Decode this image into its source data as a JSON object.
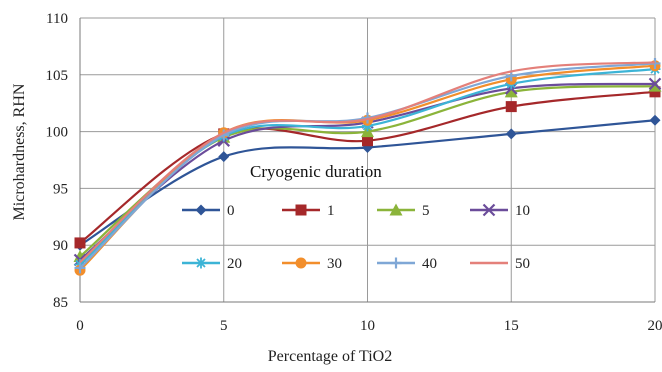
{
  "chart_data": {
    "type": "line",
    "title": "",
    "xlabel": "Percentage of  TiO2",
    "ylabel": "Microhardness, RHN",
    "x": [
      0,
      5,
      10,
      15,
      20
    ],
    "x_ticks": [
      "0",
      "5",
      "10",
      "15",
      "20"
    ],
    "y_ticks": [
      "85",
      "90",
      "95",
      "100",
      "105",
      "110"
    ],
    "xlim": [
      0,
      20
    ],
    "ylim": [
      85,
      110
    ],
    "grid": true,
    "smooth": true,
    "legend_title": "Cryogenic duration",
    "legend_placement": "center",
    "series": [
      {
        "name": "0",
        "color": "#2F5597",
        "marker": "diamond",
        "values": [
          90.0,
          97.8,
          98.6,
          99.8,
          101.0
        ]
      },
      {
        "name": "1",
        "color": "#A5282A",
        "marker": "square",
        "values": [
          90.2,
          99.8,
          99.2,
          102.2,
          103.5
        ]
      },
      {
        "name": "5",
        "color": "#8BB43A",
        "marker": "triangle",
        "values": [
          89.0,
          99.5,
          100.0,
          103.5,
          104.0
        ]
      },
      {
        "name": "10",
        "color": "#6B4C9A",
        "marker": "x",
        "values": [
          88.7,
          99.2,
          100.8,
          103.8,
          104.2
        ]
      },
      {
        "name": "20",
        "color": "#3CB4D6",
        "marker": "star",
        "values": [
          88.3,
          99.6,
          100.5,
          104.2,
          105.5
        ]
      },
      {
        "name": "30",
        "color": "#F28E2B",
        "marker": "circle",
        "values": [
          87.8,
          99.9,
          101.0,
          104.6,
          105.8
        ]
      },
      {
        "name": "40",
        "color": "#7FA7D6",
        "marker": "plus",
        "values": [
          88.0,
          99.7,
          101.2,
          104.9,
          106.0
        ]
      },
      {
        "name": "50",
        "color": "#E4807A",
        "marker": "none",
        "values": [
          88.5,
          99.9,
          101.1,
          105.3,
          106.1
        ]
      }
    ]
  }
}
